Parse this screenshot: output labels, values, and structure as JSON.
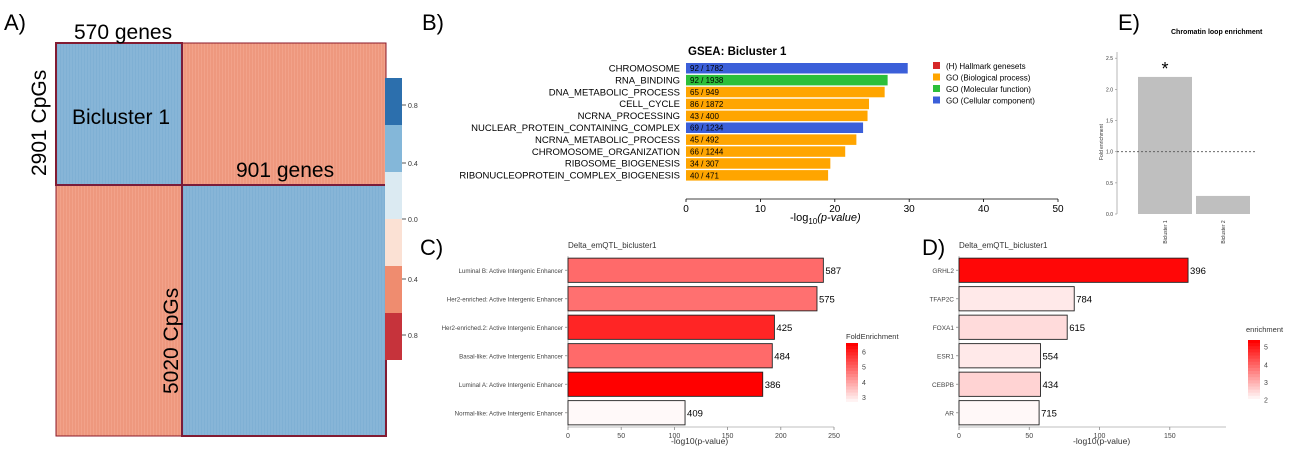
{
  "chart_data": [
    {
      "panel": "A)",
      "type": "heatmap",
      "top_label": "570 genes",
      "left_label": "2901 CpGs",
      "block_label": "Bicluster 1",
      "right_label": "901 genes",
      "bottom_label": "5020 CpGs",
      "colorbar": {
        "ticks": [
          "0.8",
          "0.4",
          "0.0",
          "0.4",
          "0.8"
        ],
        "colors": [
          "#2c6fad",
          "#84b7d9",
          "#dbeaf2",
          "#fbe1d4",
          "#ef8c6f",
          "#c6333b"
        ]
      },
      "colors": {
        "blue_block": "#86b5d8",
        "red_block": "#ee977c",
        "border": "#8b1a2b"
      }
    },
    {
      "panel": "B)",
      "type": "bar",
      "orientation": "horizontal",
      "title": "GSEA: Bicluster 1",
      "xlabel_main": "-log",
      "xlabel_sub": "10",
      "xlabel_rest": "(p-value)",
      "xlim": [
        0,
        50
      ],
      "xticks": [
        "0",
        "10",
        "20",
        "30",
        "40",
        "50"
      ],
      "categories": [
        "CHROMOSOME",
        "RNA_BINDING",
        "DNA_METABOLIC_PROCESS",
        "CELL_CYCLE",
        "NCRNA_PROCESSING",
        "NUCLEAR_PROTEIN_CONTAINING_COMPLEX",
        "NCRNA_METABOLIC_PROCESS",
        "CHROMOSOME_ORGANIZATION",
        "RIBOSOME_BIOGENESIS",
        "RIBONUCLEOPROTEIN_COMPLEX_BIOGENESIS"
      ],
      "values": [
        29.8,
        27.1,
        26.7,
        24.6,
        24.4,
        23.8,
        22.9,
        21.4,
        19.4,
        19.1
      ],
      "bar_labels": [
        "92 / 1782",
        "92 / 1938",
        "65 / 949",
        "86 / 1872",
        "43 / 400",
        "69 / 1234",
        "45 / 492",
        "66 / 1244",
        "34 / 307",
        "40 / 471"
      ],
      "groups": [
        "GO (Cellular component)",
        "GO (Molecular function)",
        "GO (Biological process)",
        "GO (Biological process)",
        "GO (Biological process)",
        "GO (Cellular component)",
        "GO (Biological process)",
        "GO (Biological process)",
        "GO (Biological process)",
        "GO (Biological process)"
      ],
      "legend": [
        {
          "name": "(H)  Hallmark genesets",
          "color": "#d62728"
        },
        {
          "name": "GO (Biological process)",
          "color": "#ffa500"
        },
        {
          "name": "GO (Molecular function)",
          "color": "#2cbf3a"
        },
        {
          "name": "GO (Cellular component)",
          "color": "#3b5fd9"
        }
      ]
    },
    {
      "panel": "C)",
      "type": "bar",
      "orientation": "horizontal",
      "title": "Delta_emQTL_bicluster1",
      "xlabel": "-log10(p-value)",
      "xlim": [
        0,
        250
      ],
      "xticks": [
        "0",
        "50",
        "100",
        "150",
        "200",
        "250"
      ],
      "categories": [
        "Luminal B: Active Intergenic Enhancer",
        "Her2-enriched: Active Intergenic Enhancer",
        "Her2-enriched.2: Active Intergenic Enhancer",
        "Basal-like: Active Intergenic Enhancer",
        "Luminal A: Active Intergenic Enhancer",
        "Normal-like: Active Intergenic Enhancer"
      ],
      "values": [
        240,
        234,
        194,
        192,
        183,
        110
      ],
      "bar_labels": [
        "587",
        "575",
        "425",
        "484",
        "386",
        "409"
      ],
      "fold_enrichment": [
        4.9,
        4.8,
        6.0,
        4.9,
        6.6,
        2.6
      ],
      "colorbar": {
        "title": "FoldEnrichment",
        "ticks": [
          "6",
          "5",
          "4",
          "3"
        ],
        "range": [
          2.5,
          6.6
        ]
      }
    },
    {
      "panel": "D)",
      "type": "bar",
      "orientation": "horizontal",
      "title": "Delta_emQTL_bicluster1",
      "xlabel": "-log10(p-value)",
      "xlim": [
        0,
        190
      ],
      "xticks": [
        "0",
        "50",
        "100",
        "150"
      ],
      "categories": [
        "GRHL2",
        "TFAP2C",
        "FOXA1",
        "ESR1",
        "CEBPB",
        "AR"
      ],
      "values": [
        163,
        82,
        77,
        58,
        58,
        57
      ],
      "bar_labels": [
        "396",
        "784",
        "615",
        "554",
        "434",
        "715"
      ],
      "enrichment": [
        5.3,
        2.2,
        2.4,
        2.2,
        2.5,
        2.0
      ],
      "colorbar": {
        "title": "enrichment",
        "ticks": [
          "5",
          "4",
          "3",
          "2"
        ],
        "range": [
          1.9,
          5.4
        ]
      }
    },
    {
      "panel": "E)",
      "type": "bar",
      "title": "Chromatin loop enrichment",
      "ylabel": "Fold enrichment",
      "ylim": [
        0,
        2.6
      ],
      "yticks": [
        "0.0",
        "0.5",
        "1.0",
        "1.5",
        "2.0",
        "2.5"
      ],
      "categories": [
        "Bicluster 1",
        "Bicluster 2"
      ],
      "values": [
        2.2,
        0.29
      ],
      "reference_line": 1.0,
      "annotation": "*"
    }
  ]
}
